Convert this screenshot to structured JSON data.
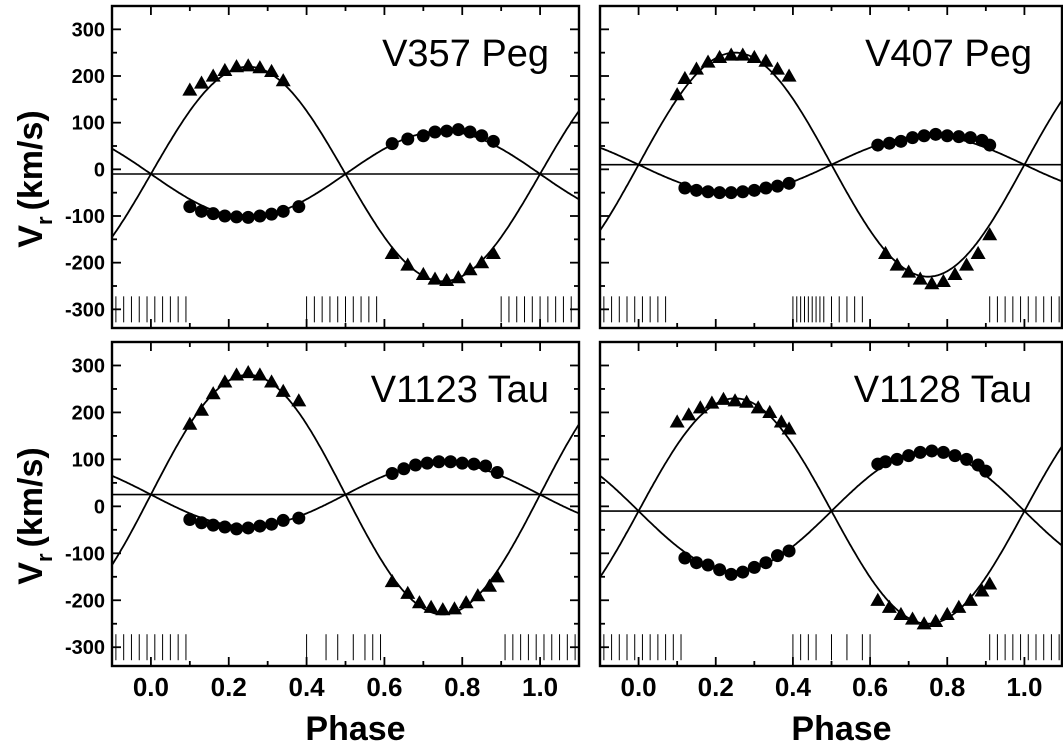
{
  "chart_data": [
    {
      "type": "scatter",
      "title": "V357 Peg",
      "xlabel": "",
      "ylabel": "V_r (km/s)",
      "ylabel_main": "V",
      "ylabel_sub": "r",
      "ylabel_unit": "(km/s)",
      "xlim": [
        -0.1,
        1.1
      ],
      "ylim": [
        -340,
        350
      ],
      "x_ticks": [
        "0.0",
        "0.2",
        "0.4",
        "0.6",
        "0.8",
        "1.0"
      ],
      "y_ticks": [
        "300",
        "200",
        "100",
        "0",
        "-100",
        "-200",
        "-300"
      ],
      "gamma": -10,
      "curves": [
        {
          "gamma": -10,
          "K": 230,
          "phase_max": 0.25
        },
        {
          "gamma": -10,
          "K": 92,
          "phase_max": 0.75
        }
      ],
      "series": [
        {
          "marker": "triangle",
          "x": [
            0.1,
            0.13,
            0.16,
            0.19,
            0.22,
            0.25,
            0.28,
            0.31,
            0.34,
            0.62,
            0.66,
            0.7,
            0.73,
            0.76,
            0.79,
            0.82,
            0.85,
            0.88
          ],
          "y": [
            170,
            185,
            200,
            212,
            220,
            222,
            218,
            210,
            190,
            -180,
            -205,
            -225,
            -235,
            -238,
            -232,
            -215,
            -200,
            -180
          ]
        },
        {
          "marker": "circle",
          "x": [
            0.1,
            0.13,
            0.16,
            0.19,
            0.22,
            0.25,
            0.28,
            0.31,
            0.34,
            0.38,
            0.62,
            0.66,
            0.7,
            0.73,
            0.76,
            0.79,
            0.82,
            0.85,
            0.88
          ],
          "y": [
            -80,
            -90,
            -95,
            -100,
            -102,
            -103,
            -100,
            -96,
            -90,
            -80,
            55,
            65,
            72,
            80,
            82,
            85,
            80,
            72,
            60
          ]
        }
      ],
      "observation_phases": [
        -0.09,
        -0.07,
        -0.05,
        -0.03,
        -0.01,
        0.01,
        0.03,
        0.05,
        0.07,
        0.09,
        0.4,
        0.42,
        0.44,
        0.46,
        0.48,
        0.5,
        0.52,
        0.54,
        0.56,
        0.58,
        0.9,
        0.92,
        0.94,
        0.96,
        0.98,
        1.0,
        1.02,
        1.04,
        1.06,
        1.08
      ]
    },
    {
      "type": "scatter",
      "title": "V407 Peg",
      "xlabel": "",
      "ylabel": "",
      "xlim": [
        -0.1,
        1.1
      ],
      "ylim": [
        -340,
        350
      ],
      "x_ticks": [
        "0.0",
        "0.2",
        "0.4",
        "0.6",
        "0.8",
        "1.0"
      ],
      "y_ticks": [],
      "gamma": 10,
      "curves": [
        {
          "gamma": 10,
          "K": 240,
          "phase_max": 0.25
        },
        {
          "gamma": 10,
          "K": 62,
          "phase_max": 0.75
        }
      ],
      "series": [
        {
          "marker": "triangle",
          "x": [
            0.1,
            0.12,
            0.15,
            0.18,
            0.21,
            0.24,
            0.27,
            0.3,
            0.33,
            0.36,
            0.39,
            0.64,
            0.67,
            0.7,
            0.73,
            0.76,
            0.79,
            0.82,
            0.85,
            0.88,
            0.91
          ],
          "y": [
            160,
            195,
            215,
            230,
            240,
            245,
            245,
            240,
            232,
            215,
            200,
            -180,
            -205,
            -220,
            -235,
            -245,
            -240,
            -225,
            -205,
            -180,
            -140
          ]
        },
        {
          "marker": "circle",
          "x": [
            0.12,
            0.15,
            0.18,
            0.21,
            0.24,
            0.27,
            0.3,
            0.33,
            0.36,
            0.39,
            0.62,
            0.65,
            0.68,
            0.71,
            0.74,
            0.77,
            0.8,
            0.83,
            0.86,
            0.89,
            0.91
          ],
          "y": [
            -40,
            -45,
            -48,
            -50,
            -50,
            -48,
            -45,
            -40,
            -36,
            -30,
            52,
            56,
            60,
            68,
            72,
            75,
            72,
            70,
            68,
            62,
            52
          ]
        }
      ],
      "observation_phases": [
        -0.09,
        -0.07,
        -0.05,
        -0.03,
        -0.01,
        0.01,
        0.03,
        0.05,
        0.07,
        0.4,
        0.41,
        0.42,
        0.43,
        0.44,
        0.45,
        0.46,
        0.47,
        0.48,
        0.5,
        0.52,
        0.54,
        0.56,
        0.58,
        0.91,
        0.93,
        0.95,
        0.97,
        0.99,
        1.01,
        1.03,
        1.05,
        1.07,
        1.09
      ]
    },
    {
      "type": "scatter",
      "title": "V1123 Tau",
      "xlabel": "Phase",
      "ylabel": "V_r (km/s)",
      "ylabel_main": "V",
      "ylabel_sub": "r",
      "ylabel_unit": "(km/s)",
      "xlim": [
        -0.1,
        1.1
      ],
      "ylim": [
        -340,
        350
      ],
      "x_ticks": [
        "0.0",
        "0.2",
        "0.4",
        "0.6",
        "0.8",
        "1.0"
      ],
      "y_ticks": [
        "300",
        "200",
        "100",
        "0",
        "-100",
        "-200",
        "-300"
      ],
      "gamma": 25,
      "curves": [
        {
          "gamma": 25,
          "K": 255,
          "phase_max": 0.25
        },
        {
          "gamma": 25,
          "K": 68,
          "phase_max": 0.75
        }
      ],
      "series": [
        {
          "marker": "triangle",
          "x": [
            0.1,
            0.13,
            0.16,
            0.19,
            0.22,
            0.25,
            0.28,
            0.31,
            0.34,
            0.38,
            0.62,
            0.66,
            0.69,
            0.72,
            0.75,
            0.78,
            0.81,
            0.84,
            0.87,
            0.89
          ],
          "y": [
            175,
            205,
            240,
            265,
            280,
            285,
            280,
            265,
            245,
            225,
            -160,
            -185,
            -205,
            -215,
            -220,
            -218,
            -205,
            -190,
            -170,
            -150
          ]
        },
        {
          "marker": "circle",
          "x": [
            0.1,
            0.13,
            0.16,
            0.19,
            0.22,
            0.25,
            0.28,
            0.31,
            0.34,
            0.38,
            0.62,
            0.65,
            0.68,
            0.71,
            0.74,
            0.77,
            0.8,
            0.83,
            0.86,
            0.89
          ],
          "y": [
            -28,
            -35,
            -40,
            -44,
            -48,
            -46,
            -42,
            -38,
            -30,
            -25,
            70,
            80,
            88,
            92,
            95,
            95,
            92,
            90,
            86,
            72
          ]
        }
      ],
      "observation_phases": [
        -0.09,
        -0.07,
        -0.05,
        -0.03,
        -0.01,
        0.01,
        0.03,
        0.05,
        0.07,
        0.09,
        0.4,
        0.45,
        0.48,
        0.52,
        0.55,
        0.57,
        0.59,
        0.91,
        0.93,
        0.95,
        0.97,
        0.99,
        1.01,
        1.03,
        1.05,
        1.07,
        1.09
      ]
    },
    {
      "type": "scatter",
      "title": "V1128 Tau",
      "xlabel": "Phase",
      "ylabel": "",
      "xlim": [
        -0.1,
        1.1
      ],
      "ylim": [
        -340,
        350
      ],
      "x_ticks": [
        "0.0",
        "0.2",
        "0.4",
        "0.6",
        "0.8",
        "1.0"
      ],
      "y_ticks": [],
      "gamma": -10,
      "curves": [
        {
          "gamma": -10,
          "K": 240,
          "phase_max": 0.25
        },
        {
          "gamma": -10,
          "K": 128,
          "phase_max": 0.75
        }
      ],
      "series": [
        {
          "marker": "triangle",
          "x": [
            0.1,
            0.13,
            0.16,
            0.19,
            0.22,
            0.25,
            0.28,
            0.31,
            0.34,
            0.37,
            0.39,
            0.62,
            0.65,
            0.68,
            0.71,
            0.74,
            0.77,
            0.8,
            0.83,
            0.86,
            0.89,
            0.91
          ],
          "y": [
            180,
            195,
            210,
            220,
            228,
            225,
            222,
            210,
            200,
            180,
            165,
            -200,
            -215,
            -230,
            -240,
            -250,
            -245,
            -230,
            -215,
            -200,
            -180,
            -165
          ]
        },
        {
          "marker": "circle",
          "x": [
            0.12,
            0.15,
            0.18,
            0.21,
            0.24,
            0.27,
            0.3,
            0.33,
            0.36,
            0.39,
            0.62,
            0.64,
            0.67,
            0.7,
            0.73,
            0.76,
            0.79,
            0.82,
            0.85,
            0.88,
            0.9
          ],
          "y": [
            -110,
            -120,
            -125,
            -135,
            -145,
            -140,
            -130,
            -120,
            -105,
            -95,
            90,
            95,
            100,
            108,
            115,
            118,
            115,
            108,
            100,
            88,
            75
          ]
        }
      ],
      "observation_phases": [
        -0.09,
        -0.07,
        -0.05,
        -0.03,
        -0.01,
        0.01,
        0.03,
        0.05,
        0.07,
        0.09,
        0.11,
        0.4,
        0.42,
        0.44,
        0.46,
        0.5,
        0.54,
        0.58,
        0.6,
        0.91,
        0.93,
        0.95,
        0.97,
        0.99,
        1.01,
        1.03,
        1.05,
        1.07,
        1.09
      ]
    }
  ]
}
